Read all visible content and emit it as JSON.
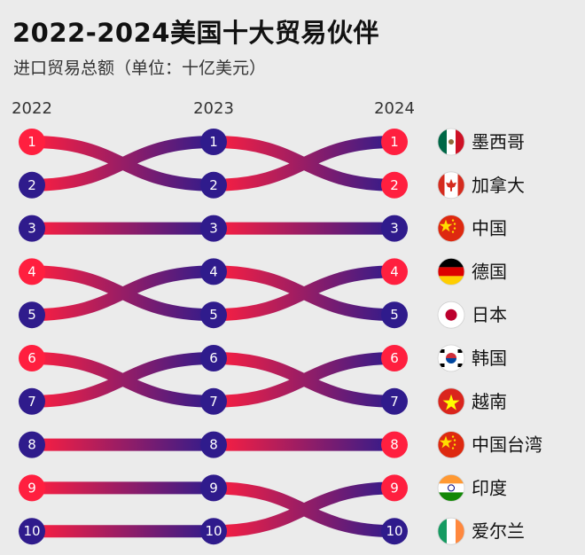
{
  "header": {
    "title": "2022-2024美国十大贸易伙伴",
    "subtitle": "进口贸易总额（单位：十亿美元）"
  },
  "colors": {
    "start_red": "#ff1f3f",
    "end_navy": "#2f1b8c",
    "background": "#ebebeb"
  },
  "chart_data": {
    "type": "bump",
    "title": "2022-2024美国十大贸易伙伴",
    "subtitle": "进口贸易总额（单位：十亿美元）",
    "years": [
      "2022",
      "2023",
      "2024"
    ],
    "series": [
      {
        "name": "墨西哥",
        "flag": "mexico-flag",
        "ranks": [
          1,
          2,
          1
        ]
      },
      {
        "name": "加拿大",
        "flag": "canada-flag",
        "ranks": [
          2,
          1,
          2
        ]
      },
      {
        "name": "中国",
        "flag": "china-flag",
        "ranks": [
          3,
          3,
          3
        ]
      },
      {
        "name": "德国",
        "flag": "germany-flag",
        "ranks": [
          4,
          5,
          4
        ]
      },
      {
        "name": "日本",
        "flag": "japan-flag",
        "ranks": [
          5,
          4,
          5
        ]
      },
      {
        "name": "韩国",
        "flag": "south-korea-flag",
        "ranks": [
          6,
          7,
          6
        ]
      },
      {
        "name": "越南",
        "flag": "vietnam-flag",
        "ranks": [
          7,
          6,
          7
        ]
      },
      {
        "name": "中国台湾",
        "flag": "china-flag",
        "ranks": [
          8,
          8,
          8
        ]
      },
      {
        "name": "爱尔兰",
        "flag": "ireland-flag",
        "ranks": [
          9,
          9,
          10
        ]
      },
      {
        "name": "印度",
        "flag": "india-flag",
        "ranks": [
          10,
          10,
          9
        ]
      }
    ]
  }
}
